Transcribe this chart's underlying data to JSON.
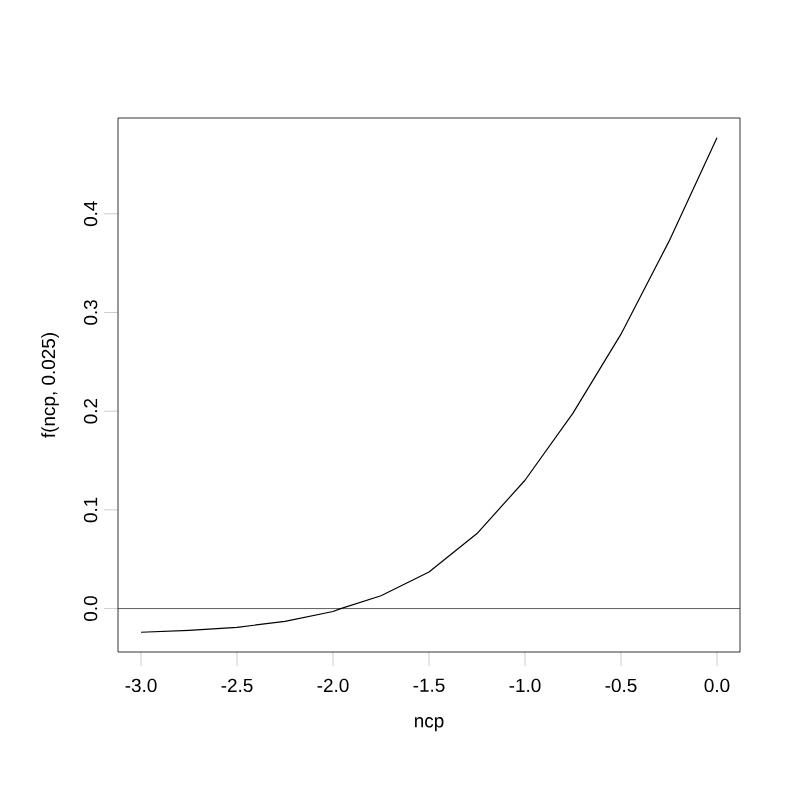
{
  "chart_data": {
    "type": "line",
    "xlabel": "ncp",
    "ylabel": "f(ncp, 0.025)",
    "x": [
      -3.0,
      -2.75,
      -2.5,
      -2.25,
      -2.0,
      -1.96,
      -1.75,
      -1.5,
      -1.25,
      -1.0,
      -0.75,
      -0.5,
      -0.25,
      0.0
    ],
    "series": [
      {
        "color": "#000000",
        "values": [
          -0.024,
          -0.022,
          -0.019,
          -0.013,
          -0.003,
          0.0,
          0.013,
          0.037,
          0.076,
          0.13,
          0.198,
          0.278,
          0.372,
          0.477
        ]
      }
    ],
    "xlim": [
      -3.12,
      0.12
    ],
    "ylim": [
      -0.044,
      0.497
    ],
    "xticks": [
      {
        "value": -3,
        "label": "-3.0"
      },
      -2.5,
      {
        "value": -2,
        "label": "-2.0"
      },
      -1.5,
      {
        "value": -1,
        "label": "-1.0"
      },
      -0.5,
      {
        "value": 0,
        "label": "0.0"
      }
    ],
    "yticks": [
      {
        "value": 0,
        "label": "0.0"
      },
      0.1,
      0.2,
      0.3,
      0.4
    ],
    "ref_lines": [
      {
        "axis": "y",
        "value": 0,
        "color": "#333333"
      }
    ],
    "grid": false,
    "marker": "none",
    "line_style": "solid"
  }
}
